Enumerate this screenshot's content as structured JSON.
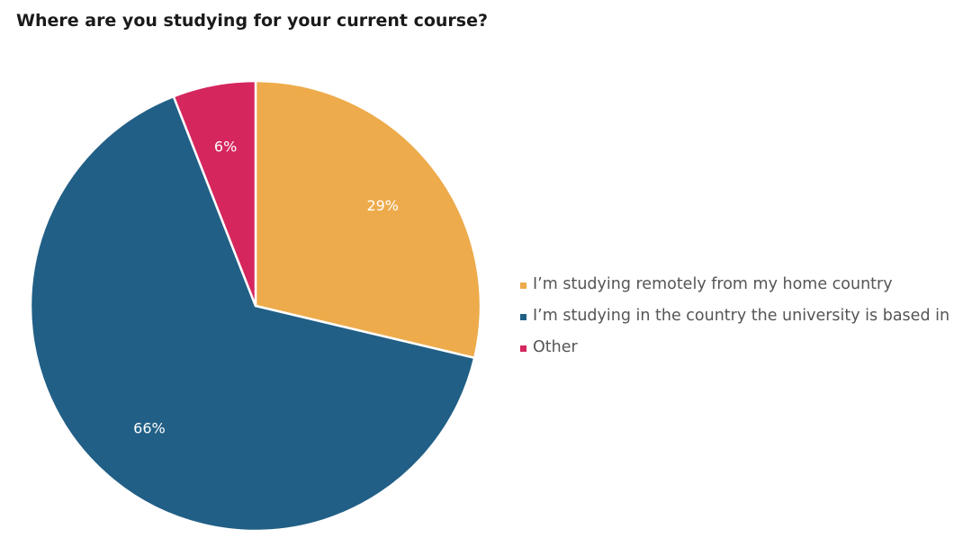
{
  "chart_data": {
    "type": "pie",
    "title": "Where are you studying for your current course?",
    "slices": [
      {
        "label": "I’m studying remotely from my home country",
        "value": 29,
        "value_label": "29%",
        "color": "#EDAB4B"
      },
      {
        "label": "I’m studying in the country the university is based in",
        "value": 66,
        "value_label": "66%",
        "color": "#215F86"
      },
      {
        "label": "Other",
        "value": 6,
        "value_label": "6%",
        "color": "#D5265E"
      }
    ],
    "start_angle_deg": 0,
    "direction": "clockwise",
    "legend_position": "right"
  }
}
